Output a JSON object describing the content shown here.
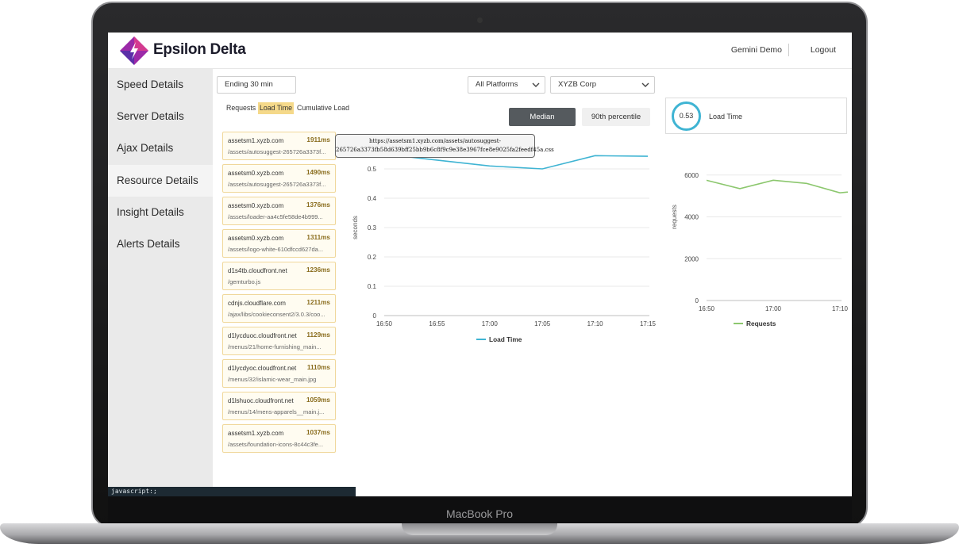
{
  "device": {
    "label": "MacBook Pro"
  },
  "app": {
    "brand": "Epsilon Delta"
  },
  "header": {
    "user": "Gemini Demo",
    "logout_label": "Logout"
  },
  "sidebar": {
    "items": [
      {
        "label": "Speed Details"
      },
      {
        "label": "Server Details"
      },
      {
        "label": "Ajax Details"
      },
      {
        "label": "Resource Details"
      },
      {
        "label": "Insight Details"
      },
      {
        "label": "Alerts Details"
      }
    ]
  },
  "filters": {
    "time_range": "Ending 30 min",
    "platform": "All Platforms",
    "org": "XYZB Corp"
  },
  "tabs": {
    "requests": "Requests",
    "load_time": "Load Time",
    "cumulative": "Cumulative Load"
  },
  "stat_buttons": {
    "median": "Median",
    "p90": "90th percentile"
  },
  "kpi": {
    "value": "0.53",
    "label": "Load Time",
    "accent": "#3fb4d3"
  },
  "resources": [
    {
      "host": "assetsm1.xyzb.com",
      "ms": "1911ms",
      "path": "/assets/autosuggest-265726a3373f..."
    },
    {
      "host": "assetsm0.xyzb.com",
      "ms": "1490ms",
      "path": "/assets/autosuggest-265726a3373f..."
    },
    {
      "host": "assetsm0.xyzb.com",
      "ms": "1376ms",
      "path": "/assets/loader-aa4c5fe58de4b999..."
    },
    {
      "host": "assetsm0.xyzb.com",
      "ms": "1311ms",
      "path": "/assets/logo-white-610dfccd627da..."
    },
    {
      "host": "d1s4tb.cloudfront.net",
      "ms": "1236ms",
      "path": "/gemturbo.js"
    },
    {
      "host": "cdnjs.cloudflare.com",
      "ms": "1211ms",
      "path": "/ajax/libs/cookieconsent2/3.0.3/coo..."
    },
    {
      "host": "d1lycduoc.cloudfront.net",
      "ms": "1129ms",
      "path": "/menus/21/home-furnishing_main..."
    },
    {
      "host": "d1lycdyoc.cloudfront.net",
      "ms": "1110ms",
      "path": "/menus/32/islamic-wear_main.jpg"
    },
    {
      "host": "d1lshuoc.cloudfront.net",
      "ms": "1059ms",
      "path": "/menus/14/mens-apparels__main.j..."
    },
    {
      "host": "assetsm1.xyzb.com",
      "ms": "1037ms",
      "path": "/assets/foundation-icons-8c44c3fe..."
    }
  ],
  "tooltip": {
    "line1": "https://assetsm1.xyzb.com/assets/autosuggest-",
    "line2": "265726a3373fb58d639bff25bb9b6c8f9c9e38e3967fce8e9025fa2feedf45a.css"
  },
  "status_bar": {
    "text": "javascript:;"
  },
  "chart_data": [
    {
      "type": "line",
      "title": "",
      "xlabel": "",
      "ylabel": "seconds",
      "x": [
        "16:50",
        "16:55",
        "17:00",
        "17:05",
        "17:10",
        "17:15"
      ],
      "ylim": [
        0,
        0.6
      ],
      "yticks": [
        0,
        0.1,
        0.2,
        0.3,
        0.4,
        0.5
      ],
      "grid": true,
      "legend": "bottom",
      "series": [
        {
          "name": "Load Time",
          "color": "#3fb4d3",
          "values": [
            0.55,
            0.53,
            0.51,
            0.5,
            0.545,
            0.543
          ]
        }
      ]
    },
    {
      "type": "line",
      "title": "",
      "xlabel": "",
      "ylabel": "requests",
      "x": [
        "16:50",
        "17:00",
        "17:10"
      ],
      "ylim": [
        0,
        8000
      ],
      "yticks": [
        0,
        2000,
        4000,
        6000,
        8000
      ],
      "grid": true,
      "legend": "bottom",
      "series": [
        {
          "name": "Requests",
          "color": "#8cc76e",
          "points": [
            [
              0,
              5750
            ],
            [
              0.5,
              5350
            ],
            [
              1,
              5750
            ],
            [
              1.5,
              5600
            ],
            [
              2,
              5150
            ],
            [
              2.5,
              5300
            ]
          ]
        }
      ]
    }
  ]
}
